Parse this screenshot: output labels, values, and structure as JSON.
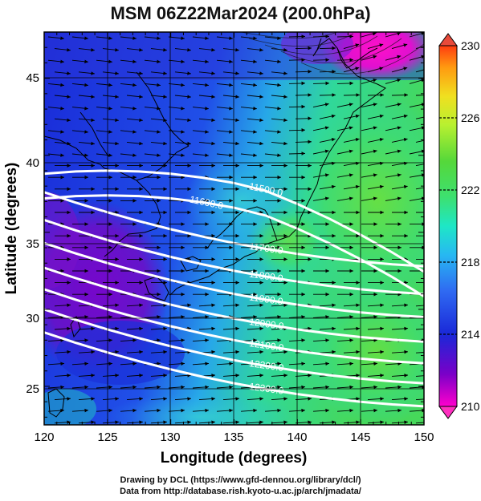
{
  "title": "MSM 06Z22Mar2024 (200.0hPa)",
  "chart_data": {
    "type": "map",
    "xlabel": "Longitude (degrees)",
    "ylabel": "Latitude  (degrees)",
    "x_ticks": [
      "120",
      "125",
      "130",
      "135",
      "140",
      "145",
      "150"
    ],
    "y_ticks": [
      "25",
      "30",
      "35",
      "40",
      "45"
    ],
    "xlim": [
      120,
      150
    ],
    "ylim": [
      22.5,
      48
    ],
    "colorbar": {
      "range": [
        210,
        230
      ],
      "ticks": [
        "230",
        "226",
        "222",
        "218",
        "214",
        "210"
      ],
      "colors": [
        "#ff00cc",
        "#7a00c8",
        "#1a28d8",
        "#2f6af2",
        "#27b8f2",
        "#1ee7c6",
        "#3de070",
        "#55d83a",
        "#b8f030",
        "#f0e020",
        "#ff9a10",
        "#ff3c10"
      ]
    },
    "contours": [
      {
        "label": "11500.0",
        "lat_at_135": 38.2
      },
      {
        "label": "11600.0",
        "lat_at_135": 36.6
      },
      {
        "label": "11700.0",
        "lat_at_135": 34.3
      },
      {
        "label": "11800.0",
        "lat_at_135": 32.5
      },
      {
        "label": "11900.0",
        "lat_at_135": 31.0
      },
      {
        "label": "12000.0",
        "lat_at_135": 29.4
      },
      {
        "label": "12100.0",
        "lat_at_135": 28.0
      },
      {
        "label": "12200.0",
        "lat_at_135": 26.7
      },
      {
        "label": "12300.0",
        "lat_at_135": 25.2
      }
    ]
  },
  "credits": {
    "line1": "Drawing by DCL (https://www.gfd-dennou.org/library/dcl/)",
    "line2": "Data from http://database.rish.kyoto-u.ac.jp/arch/jmadata/"
  }
}
